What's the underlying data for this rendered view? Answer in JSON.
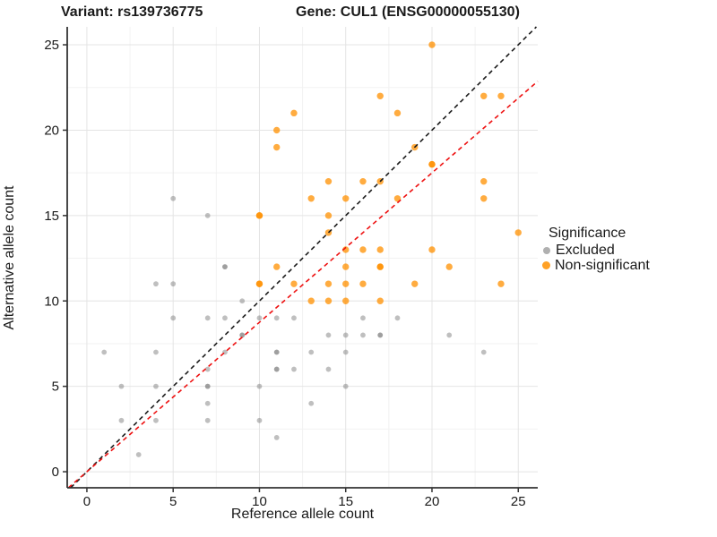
{
  "titles": {
    "left": "Variant: rs139736775",
    "right": "Gene: CUL1 (ENSG00000055130)"
  },
  "axes": {
    "xlabel": "Reference allele count",
    "ylabel": "Alternative allele count"
  },
  "legend": {
    "title": "Significance",
    "items": [
      {
        "label": "Excluded",
        "color": "rgba(128,128,128,0.62)"
      },
      {
        "label": "Non-significant",
        "color": "rgba(255,144,0,0.85)"
      }
    ]
  },
  "chart_data": {
    "type": "scatter",
    "title": "Variant: rs139736775   Gene: CUL1 (ENSG00000055130)",
    "xlabel": "Reference allele count",
    "ylabel": "Alternative allele count",
    "xlim": [
      -1.14,
      26.13
    ],
    "ylim": [
      -0.94,
      26.05
    ],
    "xticks": [
      0,
      5,
      10,
      15,
      20,
      25
    ],
    "yticks": [
      0,
      5,
      10,
      15,
      20,
      25
    ],
    "grid": {
      "major_color": "#e4e4e4",
      "minor_color": "#f2f2f2",
      "minor_step": 2.5
    },
    "legend_position": "right",
    "series": [
      {
        "name": "Excluded",
        "color": "rgba(128,128,128,0.5)",
        "radius": 2.9,
        "points": [
          [
            1,
            7,
            1
          ],
          [
            2,
            3,
            1
          ],
          [
            2,
            5,
            1
          ],
          [
            3,
            1,
            1
          ],
          [
            4,
            3,
            1
          ],
          [
            4,
            5,
            1
          ],
          [
            4,
            7,
            1
          ],
          [
            4,
            11,
            1
          ],
          [
            5,
            9,
            1
          ],
          [
            5,
            11,
            1
          ],
          [
            5,
            16,
            1
          ],
          [
            7,
            3,
            1
          ],
          [
            7,
            4,
            1
          ],
          [
            7,
            5,
            2
          ],
          [
            7,
            6,
            1
          ],
          [
            7,
            9,
            1
          ],
          [
            7,
            15,
            1
          ],
          [
            8,
            7,
            1
          ],
          [
            8,
            9,
            1
          ],
          [
            8,
            12,
            2
          ],
          [
            9,
            8,
            2
          ],
          [
            9,
            10,
            1
          ],
          [
            10,
            3,
            1
          ],
          [
            10,
            5,
            1
          ],
          [
            10,
            9,
            1
          ],
          [
            11,
            2,
            1
          ],
          [
            11,
            6,
            2
          ],
          [
            11,
            7,
            2
          ],
          [
            11,
            9,
            1
          ],
          [
            12,
            6,
            1
          ],
          [
            12,
            9,
            1
          ],
          [
            13,
            4,
            1
          ],
          [
            13,
            7,
            1
          ],
          [
            14,
            6,
            1
          ],
          [
            14,
            8,
            1
          ],
          [
            15,
            5,
            1
          ],
          [
            15,
            7,
            1
          ],
          [
            15,
            8,
            1
          ],
          [
            16,
            8,
            1
          ],
          [
            16,
            9,
            1
          ],
          [
            17,
            8,
            2
          ],
          [
            18,
            9,
            1
          ],
          [
            21,
            8,
            1
          ],
          [
            23,
            7,
            1
          ]
        ]
      },
      {
        "name": "Non-significant",
        "color": "rgba(255,144,0,0.75)",
        "radius": 3.7,
        "points": [
          [
            10,
            11,
            2
          ],
          [
            10,
            15,
            2
          ],
          [
            11,
            12,
            1
          ],
          [
            11,
            19,
            1
          ],
          [
            11,
            20,
            1
          ],
          [
            12,
            11,
            1
          ],
          [
            12,
            21,
            1
          ],
          [
            13,
            10,
            1
          ],
          [
            13,
            16,
            1
          ],
          [
            14,
            10,
            1
          ],
          [
            14,
            11,
            1
          ],
          [
            14,
            14,
            1
          ],
          [
            14,
            15,
            1
          ],
          [
            14,
            17,
            1
          ],
          [
            15,
            10,
            1
          ],
          [
            15,
            11,
            1
          ],
          [
            15,
            12,
            1
          ],
          [
            15,
            13,
            1
          ],
          [
            15,
            16,
            1
          ],
          [
            16,
            11,
            1
          ],
          [
            16,
            13,
            1
          ],
          [
            16,
            17,
            1
          ],
          [
            17,
            10,
            1
          ],
          [
            17,
            12,
            2
          ],
          [
            17,
            13,
            1
          ],
          [
            17,
            17,
            1
          ],
          [
            17,
            22,
            1
          ],
          [
            18,
            16,
            1
          ],
          [
            18,
            21,
            1
          ],
          [
            19,
            11,
            1
          ],
          [
            19,
            19,
            1
          ],
          [
            20,
            13,
            1
          ],
          [
            20,
            18,
            2
          ],
          [
            20,
            25,
            1
          ],
          [
            21,
            12,
            1
          ],
          [
            23,
            16,
            1
          ],
          [
            23,
            17,
            1
          ],
          [
            23,
            22,
            1
          ],
          [
            24,
            11,
            1
          ],
          [
            24,
            22,
            1
          ],
          [
            25,
            14,
            1
          ]
        ]
      }
    ],
    "lines": [
      {
        "name": "identity-line",
        "slope": 1,
        "intercept": 0,
        "color": "#1a1a1a",
        "dash": "5,4"
      },
      {
        "name": "fit-line",
        "slope": 0.875,
        "intercept": 0,
        "color": "#ee1111",
        "dash": "5,4"
      }
    ]
  }
}
